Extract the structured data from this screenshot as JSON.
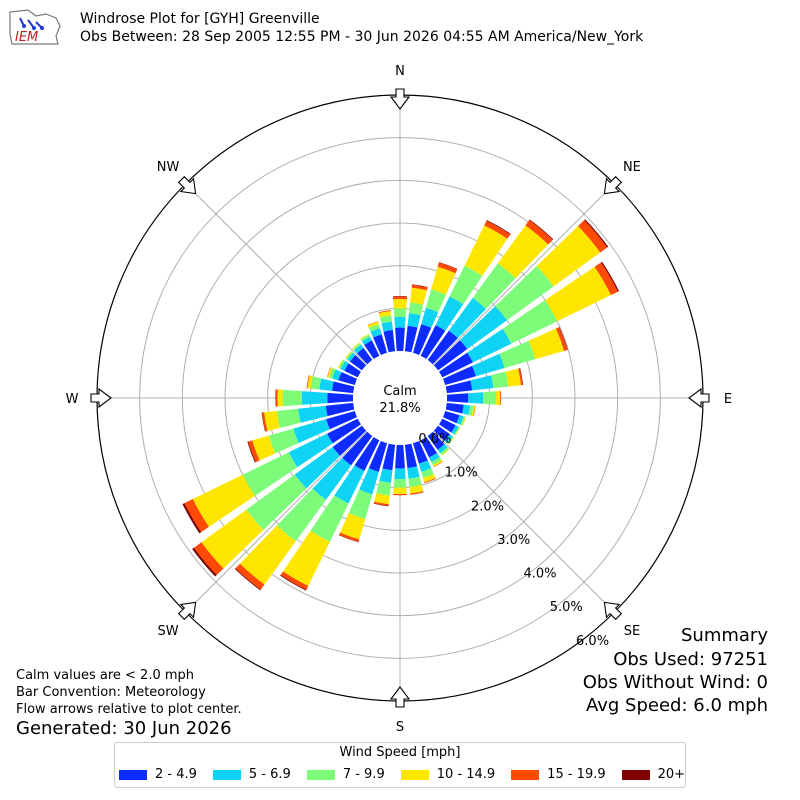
{
  "header": {
    "title": "Windrose Plot for [GYH] Greenville",
    "subtitle": "Obs Between: 28 Sep 2005 12:55 PM - 30 Jun 2026 04:55 AM America/New_York",
    "logo_text": "IEM"
  },
  "notes": {
    "calm": "Calm values are < 2.0 mph",
    "bar_convention": "Bar Convention: Meteorology",
    "flow": "Flow arrows relative to plot center.",
    "generated": "Generated: 30 Jun 2026"
  },
  "summary": {
    "title": "Summary",
    "obs_used": "Obs Used: 97251",
    "obs_without_wind": "Obs Without Wind: 0",
    "avg_speed": "Avg Speed: 6.0 mph"
  },
  "legend": {
    "title": "Wind Speed [mph]",
    "items": [
      {
        "label": "2 - 4.9",
        "color": "#0d2bff"
      },
      {
        "label": "5 - 6.9",
        "color": "#0fd3f5"
      },
      {
        "label": "7 - 9.9",
        "color": "#7dfc7a"
      },
      {
        "label": "10 - 14.9",
        "color": "#ffe600"
      },
      {
        "label": "15 - 19.9",
        "color": "#ff4a06"
      },
      {
        "label": "20+",
        "color": "#800000"
      }
    ]
  },
  "chart_data": {
    "type": "windrose",
    "calm_label": "Calm",
    "calm_percent": "21.8%",
    "radial_ticks": [
      "0.0%",
      "1.0%",
      "2.0%",
      "3.0%",
      "4.0%",
      "5.0%",
      "6.0%"
    ],
    "rmax": 6.0,
    "directions": [
      "N",
      "NE",
      "E",
      "SE",
      "S",
      "SW",
      "W",
      "NW"
    ],
    "direction_angles": [
      0,
      45,
      90,
      135,
      180,
      225,
      270,
      315
    ],
    "bar_convention": "meteorology",
    "sector_width_deg": 10,
    "series_names": [
      "2 - 4.9",
      "5 - 6.9",
      "7 - 9.9",
      "10 - 14.9",
      "15 - 19.9",
      "20+"
    ],
    "sectors": [
      {
        "dir": 0,
        "values": [
          0.55,
          0.25,
          0.2,
          0.22,
          0.06,
          0.01
        ]
      },
      {
        "dir": 10,
        "values": [
          0.6,
          0.3,
          0.25,
          0.35,
          0.07,
          0.01
        ]
      },
      {
        "dir": 20,
        "values": [
          0.7,
          0.4,
          0.45,
          0.55,
          0.1,
          0.01
        ]
      },
      {
        "dir": 30,
        "values": [
          0.8,
          0.75,
          0.8,
          1.05,
          0.12,
          0.02
        ]
      },
      {
        "dir": 40,
        "values": [
          0.85,
          0.95,
          1.0,
          1.1,
          0.15,
          0.02
        ]
      },
      {
        "dir": 50,
        "values": [
          0.85,
          1.15,
          1.35,
          1.35,
          0.2,
          0.03
        ]
      },
      {
        "dir": 60,
        "values": [
          0.8,
          1.0,
          1.2,
          1.4,
          0.18,
          0.03
        ]
      },
      {
        "dir": 70,
        "values": [
          0.75,
          0.7,
          0.75,
          0.7,
          0.08,
          0.01
        ]
      },
      {
        "dir": 80,
        "values": [
          0.6,
          0.5,
          0.35,
          0.3,
          0.04,
          0.01
        ]
      },
      {
        "dir": 90,
        "values": [
          0.5,
          0.35,
          0.3,
          0.1,
          0.02,
          0.0
        ]
      },
      {
        "dir": 100,
        "values": [
          0.4,
          0.15,
          0.08,
          0.04,
          0.01,
          0.0
        ]
      },
      {
        "dir": 110,
        "values": [
          0.35,
          0.1,
          0.04,
          0.02,
          0.0,
          0.0
        ]
      },
      {
        "dir": 120,
        "values": [
          0.35,
          0.08,
          0.03,
          0.01,
          0.0,
          0.0
        ]
      },
      {
        "dir": 130,
        "values": [
          0.35,
          0.08,
          0.03,
          0.01,
          0.0,
          0.0
        ]
      },
      {
        "dir": 140,
        "values": [
          0.4,
          0.1,
          0.05,
          0.02,
          0.0,
          0.0
        ]
      },
      {
        "dir": 150,
        "values": [
          0.45,
          0.12,
          0.08,
          0.04,
          0.01,
          0.0
        ]
      },
      {
        "dir": 160,
        "values": [
          0.5,
          0.2,
          0.15,
          0.1,
          0.02,
          0.0
        ]
      },
      {
        "dir": 170,
        "values": [
          0.55,
          0.25,
          0.2,
          0.15,
          0.03,
          0.0
        ]
      },
      {
        "dir": 180,
        "values": [
          0.55,
          0.25,
          0.2,
          0.15,
          0.03,
          0.0
        ]
      },
      {
        "dir": 190,
        "values": [
          0.6,
          0.3,
          0.3,
          0.2,
          0.04,
          0.01
        ]
      },
      {
        "dir": 200,
        "values": [
          0.7,
          0.55,
          0.6,
          0.5,
          0.06,
          0.01
        ]
      },
      {
        "dir": 210,
        "values": [
          0.8,
          0.85,
          1.0,
          1.15,
          0.1,
          0.02
        ]
      },
      {
        "dir": 220,
        "values": [
          0.85,
          1.0,
          1.2,
          1.25,
          0.15,
          0.02
        ]
      },
      {
        "dir": 230,
        "values": [
          0.85,
          1.1,
          1.4,
          1.3,
          0.22,
          0.05
        ]
      },
      {
        "dir": 240,
        "values": [
          0.8,
          1.0,
          1.2,
          1.3,
          0.22,
          0.05
        ]
      },
      {
        "dir": 250,
        "values": [
          0.7,
          0.8,
          0.6,
          0.4,
          0.1,
          0.02
        ]
      },
      {
        "dir": 260,
        "values": [
          0.65,
          0.65,
          0.5,
          0.3,
          0.05,
          0.01
        ]
      },
      {
        "dir": 270,
        "values": [
          0.6,
          0.6,
          0.45,
          0.12,
          0.04,
          0.01
        ]
      },
      {
        "dir": 280,
        "values": [
          0.5,
          0.3,
          0.2,
          0.08,
          0.02,
          0.0
        ]
      },
      {
        "dir": 290,
        "values": [
          0.4,
          0.15,
          0.08,
          0.04,
          0.01,
          0.0
        ]
      },
      {
        "dir": 300,
        "values": [
          0.35,
          0.1,
          0.05,
          0.02,
          0.0,
          0.0
        ]
      },
      {
        "dir": 310,
        "values": [
          0.35,
          0.08,
          0.04,
          0.02,
          0.0,
          0.0
        ]
      },
      {
        "dir": 320,
        "values": [
          0.35,
          0.1,
          0.04,
          0.02,
          0.0,
          0.0
        ]
      },
      {
        "dir": 330,
        "values": [
          0.4,
          0.1,
          0.05,
          0.02,
          0.0,
          0.0
        ]
      },
      {
        "dir": 340,
        "values": [
          0.45,
          0.15,
          0.1,
          0.06,
          0.01,
          0.0
        ]
      },
      {
        "dir": 350,
        "values": [
          0.5,
          0.2,
          0.15,
          0.1,
          0.02,
          0.0
        ]
      }
    ]
  }
}
